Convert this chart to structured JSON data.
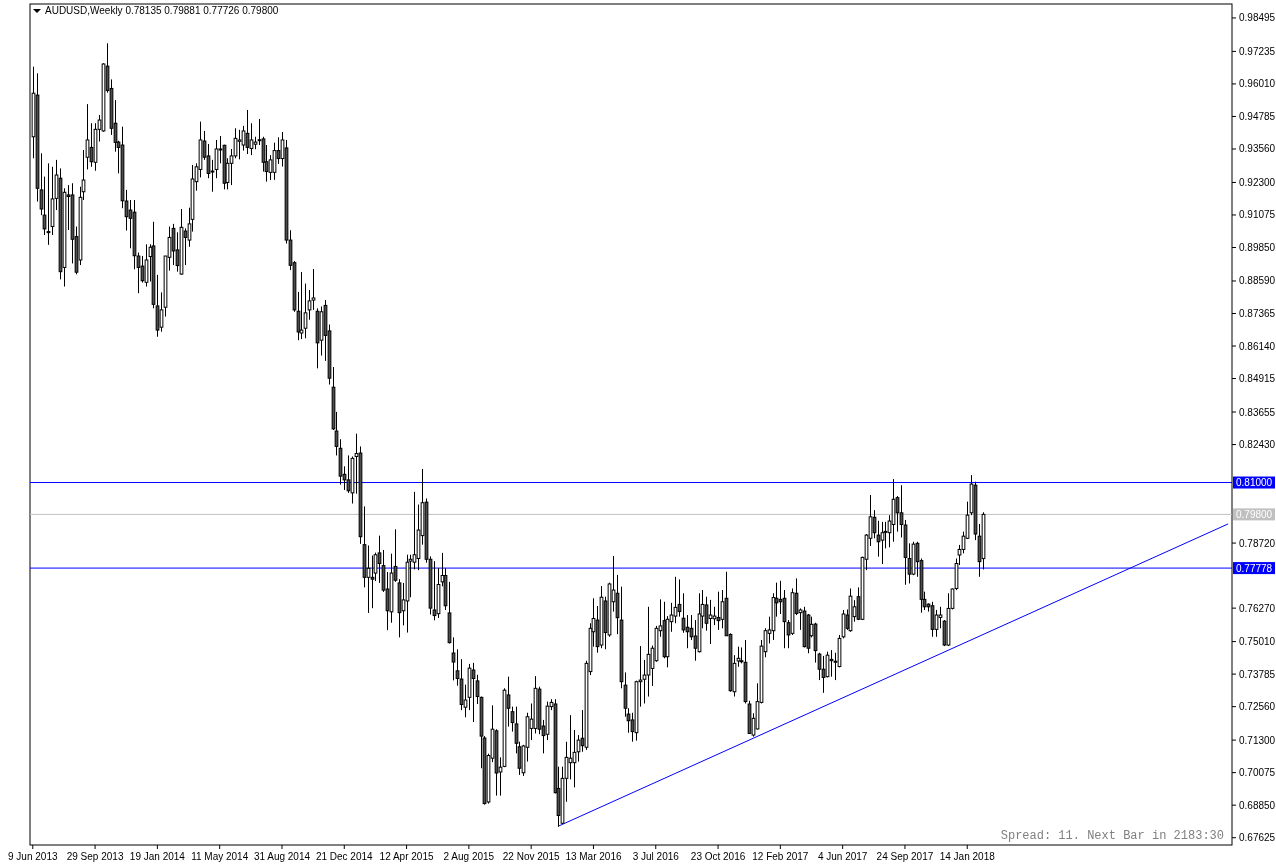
{
  "chart_data": {
    "type": "candlestick",
    "title": "AUDUSD,Weekly 0.78135 0.79881 0.77726 0.79800",
    "annotations": [
      "Spread: 11. Next Bar in 2183:30"
    ],
    "xlim": [
      "2013-06-04",
      "2019-05-05"
    ],
    "ylim": [
      0.6735,
      0.9902
    ],
    "xticks": [
      {
        "value": "2013-06-09",
        "label": "9 Jun 2013"
      },
      {
        "value": "2013-09-29",
        "label": "29 Sep 2013"
      },
      {
        "value": "2014-01-19",
        "label": "19 Jan 2014"
      },
      {
        "value": "2014-05-11",
        "label": "11 May 2014"
      },
      {
        "value": "2014-08-31",
        "label": "31 Aug 2014"
      },
      {
        "value": "2014-12-21",
        "label": "21 Dec 2014"
      },
      {
        "value": "2015-04-12",
        "label": "12 Apr 2015"
      },
      {
        "value": "2015-08-02",
        "label": "2 Aug 2015"
      },
      {
        "value": "2015-11-22",
        "label": "22 Nov 2015"
      },
      {
        "value": "2016-03-13",
        "label": "13 Mar 2016"
      },
      {
        "value": "2016-07-03",
        "label": "3 Jul 2016"
      },
      {
        "value": "2016-10-23",
        "label": "23 Oct 2016"
      },
      {
        "value": "2017-02-12",
        "label": "12 Feb 2017"
      },
      {
        "value": "2017-06-04",
        "label": "4 Jun 2017"
      },
      {
        "value": "2017-09-24",
        "label": "24 Sep 2017"
      },
      {
        "value": "2018-01-14",
        "label": "14 Jan 2018"
      }
    ],
    "yticks": [
      {
        "value": 0.98495,
        "label": "0.98495"
      },
      {
        "value": 0.97235,
        "label": "0.97235"
      },
      {
        "value": 0.9601,
        "label": "0.96010"
      },
      {
        "value": 0.94785,
        "label": "0.94785"
      },
      {
        "value": 0.9356,
        "label": "0.93560"
      },
      {
        "value": 0.923,
        "label": "0.92300"
      },
      {
        "value": 0.91075,
        "label": "0.91075"
      },
      {
        "value": 0.8985,
        "label": "0.89850"
      },
      {
        "value": 0.8859,
        "label": "0.88590"
      },
      {
        "value": 0.87365,
        "label": "0.87365"
      },
      {
        "value": 0.8614,
        "label": "0.86140"
      },
      {
        "value": 0.84915,
        "label": "0.84915"
      },
      {
        "value": 0.83655,
        "label": "0.83655"
      },
      {
        "value": 0.8243,
        "label": "0.82430"
      },
      {
        "value": 0.7872,
        "label": "0.78720"
      },
      {
        "value": 0.7627,
        "label": "0.76270"
      },
      {
        "value": 0.7501,
        "label": "0.75010"
      },
      {
        "value": 0.73785,
        "label": "0.73785"
      },
      {
        "value": 0.7256,
        "label": "0.72560"
      },
      {
        "value": 0.713,
        "label": "0.71300"
      },
      {
        "value": 0.70075,
        "label": "0.70075"
      },
      {
        "value": 0.6885,
        "label": "0.68850"
      },
      {
        "value": 0.67625,
        "label": "0.67625"
      }
    ],
    "ref_lines": [
      {
        "axis": "y",
        "value": 0.81,
        "label": "0.81000",
        "color": "#0000ff"
      },
      {
        "axis": "y",
        "value": 0.798,
        "label": "0.79800",
        "color": "#c0c0c0"
      },
      {
        "axis": "y",
        "value": 0.77778,
        "label": "0.77778",
        "color": "#0000ff"
      }
    ],
    "series": [
      {
        "type": "line",
        "x": [
          "2016-01-10",
          "2019-04-28"
        ],
        "values": [
          0.6806,
          0.7944
        ],
        "color": "#0000ff"
      }
    ],
    "x": [
      "2013-06-09",
      "2013-06-16",
      "2013-06-23",
      "2013-06-30",
      "2013-07-07",
      "2013-07-14",
      "2013-07-21",
      "2013-07-28",
      "2013-08-04",
      "2013-08-11",
      "2013-08-18",
      "2013-08-25",
      "2013-09-01",
      "2013-09-08",
      "2013-09-15",
      "2013-09-22",
      "2013-09-29",
      "2013-10-06",
      "2013-10-13",
      "2013-10-20",
      "2013-10-27",
      "2013-11-03",
      "2013-11-10",
      "2013-11-17",
      "2013-11-24",
      "2013-12-01",
      "2013-12-08",
      "2013-12-15",
      "2013-12-22",
      "2013-12-29",
      "2014-01-05",
      "2014-01-12",
      "2014-01-19",
      "2014-01-26",
      "2014-02-02",
      "2014-02-09",
      "2014-02-16",
      "2014-02-23",
      "2014-03-02",
      "2014-03-09",
      "2014-03-16",
      "2014-03-23",
      "2014-03-30",
      "2014-04-06",
      "2014-04-13",
      "2014-04-20",
      "2014-04-27",
      "2014-05-04",
      "2014-05-11",
      "2014-05-18",
      "2014-05-25",
      "2014-06-01",
      "2014-06-08",
      "2014-06-15",
      "2014-06-22",
      "2014-06-29",
      "2014-07-06",
      "2014-07-13",
      "2014-07-20",
      "2014-07-27",
      "2014-08-03",
      "2014-08-10",
      "2014-08-17",
      "2014-08-24",
      "2014-08-31",
      "2014-09-07",
      "2014-09-14",
      "2014-09-21",
      "2014-09-28",
      "2014-10-05",
      "2014-10-12",
      "2014-10-19",
      "2014-10-26",
      "2014-11-02",
      "2014-11-09",
      "2014-11-16",
      "2014-11-23",
      "2014-11-30",
      "2014-12-07",
      "2014-12-14",
      "2014-12-21",
      "2014-12-28",
      "2015-01-04",
      "2015-01-11",
      "2015-01-18",
      "2015-01-25",
      "2015-02-01",
      "2015-02-08",
      "2015-02-15",
      "2015-02-22",
      "2015-03-01",
      "2015-03-08",
      "2015-03-15",
      "2015-03-22",
      "2015-03-29",
      "2015-04-05",
      "2015-04-12",
      "2015-04-19",
      "2015-04-26",
      "2015-05-03",
      "2015-05-10",
      "2015-05-17",
      "2015-05-24",
      "2015-05-31",
      "2015-06-07",
      "2015-06-14",
      "2015-06-21",
      "2015-06-28",
      "2015-07-05",
      "2015-07-12",
      "2015-07-19",
      "2015-07-26",
      "2015-08-02",
      "2015-08-09",
      "2015-08-16",
      "2015-08-23",
      "2015-08-30",
      "2015-09-06",
      "2015-09-13",
      "2015-09-20",
      "2015-09-27",
      "2015-10-04",
      "2015-10-11",
      "2015-10-18",
      "2015-10-25",
      "2015-11-01",
      "2015-11-08",
      "2015-11-15",
      "2015-11-22",
      "2015-11-29",
      "2015-12-06",
      "2015-12-13",
      "2015-12-20",
      "2015-12-27",
      "2016-01-03",
      "2016-01-10",
      "2016-01-17",
      "2016-01-24",
      "2016-01-31",
      "2016-02-07",
      "2016-02-14",
      "2016-02-21",
      "2016-02-28",
      "2016-03-06",
      "2016-03-13",
      "2016-03-20",
      "2016-03-27",
      "2016-04-03",
      "2016-04-10",
      "2016-04-17",
      "2016-04-24",
      "2016-05-01",
      "2016-05-08",
      "2016-05-15",
      "2016-05-22",
      "2016-05-29",
      "2016-06-05",
      "2016-06-12",
      "2016-06-19",
      "2016-06-26",
      "2016-07-03",
      "2016-07-10",
      "2016-07-17",
      "2016-07-24",
      "2016-07-31",
      "2016-08-07",
      "2016-08-14",
      "2016-08-21",
      "2016-08-28",
      "2016-09-04",
      "2016-09-11",
      "2016-09-18",
      "2016-09-25",
      "2016-10-02",
      "2016-10-09",
      "2016-10-16",
      "2016-10-23",
      "2016-10-30",
      "2016-11-06",
      "2016-11-13",
      "2016-11-20",
      "2016-11-27",
      "2016-12-04",
      "2016-12-11",
      "2016-12-18",
      "2016-12-25",
      "2017-01-01",
      "2017-01-08",
      "2017-01-15",
      "2017-01-22",
      "2017-01-29",
      "2017-02-05",
      "2017-02-12",
      "2017-02-19",
      "2017-02-26",
      "2017-03-05",
      "2017-03-12",
      "2017-03-19",
      "2017-03-26",
      "2017-04-02",
      "2017-04-09",
      "2017-04-16",
      "2017-04-23",
      "2017-04-30",
      "2017-05-07",
      "2017-05-14",
      "2017-05-21",
      "2017-05-28",
      "2017-06-04",
      "2017-06-11",
      "2017-06-18",
      "2017-06-25",
      "2017-07-02",
      "2017-07-09",
      "2017-07-16",
      "2017-07-23",
      "2017-07-30",
      "2017-08-06",
      "2017-08-13",
      "2017-08-20",
      "2017-08-27",
      "2017-09-03",
      "2017-09-10",
      "2017-09-17",
      "2017-09-24",
      "2017-10-01",
      "2017-10-08",
      "2017-10-15",
      "2017-10-22",
      "2017-10-29",
      "2017-11-05",
      "2017-11-12",
      "2017-11-19",
      "2017-11-26",
      "2017-12-03",
      "2017-12-10",
      "2017-12-17",
      "2017-12-24",
      "2017-12-31",
      "2018-01-07",
      "2018-01-14",
      "2018-01-21",
      "2018-01-28",
      "2018-02-04",
      "2018-02-11"
    ],
    "ohlc": [
      [
        0.9402,
        0.9666,
        0.9321,
        0.9566
      ],
      [
        0.9559,
        0.9641,
        0.9158,
        0.9208
      ],
      [
        0.9202,
        0.934,
        0.9107,
        0.913
      ],
      [
        0.9107,
        0.9252,
        0.9032,
        0.9055
      ],
      [
        0.9041,
        0.9302,
        0.8995,
        0.9045
      ],
      [
        0.9064,
        0.9289,
        0.9032,
        0.9168
      ],
      [
        0.917,
        0.9315,
        0.9126,
        0.9258
      ],
      [
        0.9246,
        0.9283,
        0.8865,
        0.8894
      ],
      [
        0.891,
        0.9208,
        0.8838,
        0.9193
      ],
      [
        0.9183,
        0.922,
        0.9051,
        0.9177
      ],
      [
        0.9183,
        0.9227,
        0.8925,
        0.9016
      ],
      [
        0.9026,
        0.9064,
        0.8884,
        0.8892
      ],
      [
        0.8938,
        0.9214,
        0.8919,
        0.9174
      ],
      [
        0.9195,
        0.9352,
        0.9164,
        0.9239
      ],
      [
        0.9325,
        0.9525,
        0.9279,
        0.939
      ],
      [
        0.9362,
        0.9453,
        0.9289,
        0.9308
      ],
      [
        0.9306,
        0.9453,
        0.9274,
        0.943
      ],
      [
        0.943,
        0.9484,
        0.9384,
        0.9465
      ],
      [
        0.9424,
        0.9679,
        0.9421,
        0.9676
      ],
      [
        0.9668,
        0.9754,
        0.9568,
        0.9576
      ],
      [
        0.9584,
        0.9618,
        0.9409,
        0.9434
      ],
      [
        0.9453,
        0.954,
        0.9346,
        0.9381
      ],
      [
        0.9382,
        0.9387,
        0.9264,
        0.9362
      ],
      [
        0.9371,
        0.944,
        0.9133,
        0.9161
      ],
      [
        0.916,
        0.9202,
        0.9049,
        0.9101
      ],
      [
        0.9126,
        0.9164,
        0.8982,
        0.9095
      ],
      [
        0.9118,
        0.9164,
        0.8903,
        0.8954
      ],
      [
        0.8953,
        0.8966,
        0.8813,
        0.891
      ],
      [
        0.8915,
        0.8953,
        0.8853,
        0.886
      ],
      [
        0.8854,
        0.8997,
        0.8838,
        0.8938
      ],
      [
        0.8951,
        0.8997,
        0.8857,
        0.8986
      ],
      [
        0.8991,
        0.9082,
        0.8756,
        0.8771
      ],
      [
        0.8765,
        0.8882,
        0.8649,
        0.8674
      ],
      [
        0.8685,
        0.8816,
        0.8668,
        0.875
      ],
      [
        0.876,
        0.8953,
        0.8725,
        0.8953
      ],
      [
        0.8948,
        0.9064,
        0.8898,
        0.9023
      ],
      [
        0.9057,
        0.9074,
        0.8919,
        0.8972
      ],
      [
        0.8976,
        0.9042,
        0.8894,
        0.8917
      ],
      [
        0.8885,
        0.913,
        0.8882,
        0.9061
      ],
      [
        0.9047,
        0.9057,
        0.8919,
        0.9023
      ],
      [
        0.9013,
        0.9135,
        0.8988,
        0.9074
      ],
      [
        0.9091,
        0.9296,
        0.9045,
        0.9243
      ],
      [
        0.9233,
        0.9302,
        0.9199,
        0.9289
      ],
      [
        0.9279,
        0.9459,
        0.9249,
        0.939
      ],
      [
        0.9386,
        0.9424,
        0.9315,
        0.9325
      ],
      [
        0.933,
        0.9375,
        0.9246,
        0.9264
      ],
      [
        0.9271,
        0.9315,
        0.9195,
        0.9273
      ],
      [
        0.9279,
        0.939,
        0.9246,
        0.9356
      ],
      [
        0.9355,
        0.9405,
        0.9302,
        0.9356
      ],
      [
        0.937,
        0.9372,
        0.9204,
        0.9227
      ],
      [
        0.923,
        0.9321,
        0.9204,
        0.9302
      ],
      [
        0.9302,
        0.9356,
        0.922,
        0.933
      ],
      [
        0.933,
        0.9434,
        0.9321,
        0.9396
      ],
      [
        0.9385,
        0.9428,
        0.9317,
        0.939
      ],
      [
        0.9371,
        0.9443,
        0.935,
        0.9424
      ],
      [
        0.9415,
        0.9503,
        0.9337,
        0.9362
      ],
      [
        0.9358,
        0.9453,
        0.9333,
        0.939
      ],
      [
        0.9374,
        0.9402,
        0.9355,
        0.9382
      ],
      [
        0.939,
        0.9469,
        0.9371,
        0.9391
      ],
      [
        0.9394,
        0.9402,
        0.9271,
        0.9306
      ],
      [
        0.9308,
        0.9371,
        0.9233,
        0.9271
      ],
      [
        0.9268,
        0.9333,
        0.9239,
        0.9315
      ],
      [
        0.9268,
        0.938,
        0.924,
        0.935
      ],
      [
        0.935,
        0.94,
        0.93,
        0.932
      ],
      [
        0.932,
        0.942,
        0.929,
        0.939
      ],
      [
        0.936,
        0.939,
        0.9,
        0.9013
      ],
      [
        0.9013,
        0.905,
        0.89,
        0.8918
      ],
      [
        0.8928,
        0.8934,
        0.8743,
        0.875
      ],
      [
        0.8745,
        0.8818,
        0.8636,
        0.8667
      ],
      [
        0.8663,
        0.8893,
        0.864,
        0.8674
      ],
      [
        0.8681,
        0.8849,
        0.8643,
        0.8739
      ],
      [
        0.875,
        0.8825,
        0.8713,
        0.8784
      ],
      [
        0.8787,
        0.8904,
        0.875,
        0.8795
      ],
      [
        0.8745,
        0.8756,
        0.853,
        0.8626
      ],
      [
        0.8636,
        0.8763,
        0.8578,
        0.8743
      ],
      [
        0.8767,
        0.8787,
        0.8558,
        0.8654
      ],
      [
        0.8671,
        0.8695,
        0.8469,
        0.8493
      ],
      [
        0.8459,
        0.8535,
        0.8298,
        0.8302
      ],
      [
        0.8294,
        0.8366,
        0.8202,
        0.8236
      ],
      [
        0.8229,
        0.8263,
        0.8092,
        0.8124
      ],
      [
        0.8131,
        0.8161,
        0.8072,
        0.811
      ],
      [
        0.811,
        0.8202,
        0.8061,
        0.8069
      ],
      [
        0.8061,
        0.8198,
        0.8021,
        0.8191
      ],
      [
        0.8198,
        0.8284,
        0.8058,
        0.8209
      ],
      [
        0.8211,
        0.8236,
        0.7869,
        0.7896
      ],
      [
        0.7866,
        0.801,
        0.7705,
        0.7743
      ],
      [
        0.7743,
        0.7863,
        0.7609,
        0.7777
      ],
      [
        0.7743,
        0.7825,
        0.7627,
        0.7736
      ],
      [
        0.7759,
        0.7836,
        0.7729,
        0.7828
      ],
      [
        0.7835,
        0.79,
        0.7722,
        0.7795
      ],
      [
        0.7787,
        0.7846,
        0.7688,
        0.7695
      ],
      [
        0.7699,
        0.7763,
        0.7544,
        0.7617
      ],
      [
        0.7613,
        0.7832,
        0.7572,
        0.7759
      ],
      [
        0.7784,
        0.7924,
        0.7726,
        0.7732
      ],
      [
        0.7722,
        0.7736,
        0.7517,
        0.761
      ],
      [
        0.7617,
        0.7722,
        0.7562,
        0.7658
      ],
      [
        0.7654,
        0.7828,
        0.7535,
        0.78
      ],
      [
        0.7804,
        0.7828,
        0.7668,
        0.7811
      ],
      [
        0.78,
        0.8065,
        0.7773,
        0.7828
      ],
      [
        0.7814,
        0.8017,
        0.777,
        0.7921
      ],
      [
        0.79,
        0.8151,
        0.7866,
        0.8024
      ],
      [
        0.8026,
        0.804,
        0.7798,
        0.7811
      ],
      [
        0.7811,
        0.7822,
        0.7603,
        0.7627
      ],
      [
        0.762,
        0.7804,
        0.7581,
        0.7599
      ],
      [
        0.7606,
        0.7777,
        0.759,
        0.7716
      ],
      [
        0.7726,
        0.7835,
        0.7709,
        0.775
      ],
      [
        0.775,
        0.7777,
        0.762,
        0.7636
      ],
      [
        0.7609,
        0.7726,
        0.7494,
        0.7497
      ],
      [
        0.7458,
        0.7517,
        0.7355,
        0.7424
      ],
      [
        0.7391,
        0.7472,
        0.7335,
        0.7362
      ],
      [
        0.736,
        0.7435,
        0.7243,
        0.7264
      ],
      [
        0.7254,
        0.7339,
        0.7216,
        0.7281
      ],
      [
        0.7291,
        0.7417,
        0.7243,
        0.7401
      ],
      [
        0.7394,
        0.7421,
        0.7198,
        0.7362
      ],
      [
        0.7353,
        0.7376,
        0.7266,
        0.7294
      ],
      [
        0.7291,
        0.7294,
        0.7024,
        0.7145
      ],
      [
        0.7138,
        0.7145,
        0.6887,
        0.6891
      ],
      [
        0.6897,
        0.7079,
        0.6891,
        0.7072
      ],
      [
        0.7062,
        0.7261,
        0.7047,
        0.7171
      ],
      [
        0.7165,
        0.7171,
        0.6921,
        0.7006
      ],
      [
        0.701,
        0.7065,
        0.6921,
        0.7028
      ],
      [
        0.7031,
        0.7325,
        0.7028,
        0.7318
      ],
      [
        0.73,
        0.7369,
        0.7181,
        0.725
      ],
      [
        0.7237,
        0.7256,
        0.7162,
        0.7196
      ],
      [
        0.7191,
        0.7256,
        0.708,
        0.7118
      ],
      [
        0.7105,
        0.7124,
        0.6999,
        0.7024
      ],
      [
        0.7007,
        0.7112,
        0.6995,
        0.7108
      ],
      [
        0.7103,
        0.7233,
        0.7049,
        0.7218
      ],
      [
        0.7174,
        0.7268,
        0.713,
        0.7209
      ],
      [
        0.7174,
        0.7371,
        0.7155,
        0.7325
      ],
      [
        0.7322,
        0.7331,
        0.7152,
        0.7171
      ],
      [
        0.7183,
        0.7206,
        0.708,
        0.7147
      ],
      [
        0.7152,
        0.7275,
        0.713,
        0.7258
      ],
      [
        0.7256,
        0.7284,
        0.7243,
        0.7272
      ],
      [
        0.7266,
        0.7284,
        0.6929,
        0.6932
      ],
      [
        0.6948,
        0.703,
        0.6804,
        0.6846
      ],
      [
        0.6817,
        0.703,
        0.6814,
        0.6986
      ],
      [
        0.6986,
        0.7124,
        0.6898,
        0.7065
      ],
      [
        0.7045,
        0.7224,
        0.6982,
        0.7062
      ],
      [
        0.7045,
        0.7168,
        0.6952,
        0.7084
      ],
      [
        0.7086,
        0.7149,
        0.7049,
        0.713
      ],
      [
        0.7137,
        0.7243,
        0.7086,
        0.7109
      ],
      [
        0.7103,
        0.7429,
        0.7093,
        0.7419
      ],
      [
        0.7388,
        0.757,
        0.7375,
        0.7551
      ],
      [
        0.7538,
        0.7664,
        0.7482,
        0.7588
      ],
      [
        0.7582,
        0.7635,
        0.7459,
        0.7482
      ],
      [
        0.7488,
        0.771,
        0.7476,
        0.7668
      ],
      [
        0.7654,
        0.767,
        0.7472,
        0.7535
      ],
      [
        0.7526,
        0.7723,
        0.7519,
        0.7718
      ],
      [
        0.7651,
        0.7823,
        0.7614,
        0.7695
      ],
      [
        0.7683,
        0.7752,
        0.7529,
        0.7591
      ],
      [
        0.7582,
        0.7708,
        0.7325,
        0.735
      ],
      [
        0.7337,
        0.7385,
        0.7218,
        0.725
      ],
      [
        0.7228,
        0.725,
        0.7158,
        0.7203
      ],
      [
        0.7206,
        0.7233,
        0.7124,
        0.7162
      ],
      [
        0.7158,
        0.7354,
        0.7128,
        0.735
      ],
      [
        0.735,
        0.7484,
        0.7256,
        0.7356
      ],
      [
        0.7359,
        0.7432,
        0.7268,
        0.7375
      ],
      [
        0.7375,
        0.7632,
        0.7294,
        0.7453
      ],
      [
        0.74,
        0.7486,
        0.7334,
        0.7476
      ],
      [
        0.7429,
        0.756,
        0.7425,
        0.7551
      ],
      [
        0.7542,
        0.766,
        0.7519,
        0.756
      ],
      [
        0.758,
        0.7651,
        0.7438,
        0.7444
      ],
      [
        0.7444,
        0.7597,
        0.7404,
        0.7585
      ],
      [
        0.7576,
        0.7647,
        0.7538,
        0.7601
      ],
      [
        0.7597,
        0.7745,
        0.757,
        0.763
      ],
      [
        0.7641,
        0.7735,
        0.7595,
        0.7614
      ],
      [
        0.7589,
        0.7683,
        0.7534,
        0.7545
      ],
      [
        0.7555,
        0.7601,
        0.7476,
        0.7538
      ],
      [
        0.7551,
        0.7601,
        0.7507,
        0.7519
      ],
      [
        0.7522,
        0.7582,
        0.7429,
        0.7476
      ],
      [
        0.7463,
        0.7683,
        0.746,
        0.7605
      ],
      [
        0.7597,
        0.7695,
        0.7551,
        0.7641
      ],
      [
        0.7639,
        0.767,
        0.7542,
        0.757
      ],
      [
        0.7588,
        0.7658,
        0.7492,
        0.7601
      ],
      [
        0.7587,
        0.7632,
        0.7563,
        0.7597
      ],
      [
        0.7592,
        0.7689,
        0.7545,
        0.758
      ],
      [
        0.7585,
        0.7695,
        0.7551,
        0.7651
      ],
      [
        0.7664,
        0.7764,
        0.7522,
        0.7523
      ],
      [
        0.7528,
        0.7532,
        0.7312,
        0.7316
      ],
      [
        0.7312,
        0.745,
        0.7294,
        0.7419
      ],
      [
        0.7428,
        0.7482,
        0.7406,
        0.7438
      ],
      [
        0.7429,
        0.7479,
        0.7419,
        0.7425
      ],
      [
        0.7423,
        0.7507,
        0.7268,
        0.7275
      ],
      [
        0.7266,
        0.7278,
        0.7153,
        0.7155
      ],
      [
        0.7149,
        0.7231,
        0.7143,
        0.7212
      ],
      [
        0.7172,
        0.7344,
        0.717,
        0.7275
      ],
      [
        0.7272,
        0.7507,
        0.7268,
        0.7484
      ],
      [
        0.7463,
        0.7551,
        0.7442,
        0.7542
      ],
      [
        0.7532,
        0.7595,
        0.7494,
        0.7545
      ],
      [
        0.7542,
        0.7683,
        0.7507,
        0.7667
      ],
      [
        0.7664,
        0.7723,
        0.7595,
        0.7647
      ],
      [
        0.766,
        0.773,
        0.7605,
        0.7651
      ],
      [
        0.7664,
        0.7695,
        0.7476,
        0.7576
      ],
      [
        0.7572,
        0.7582,
        0.7476,
        0.7526
      ],
      [
        0.7532,
        0.7701,
        0.7526,
        0.7685
      ],
      [
        0.7683,
        0.7739,
        0.7601,
        0.7607
      ],
      [
        0.761,
        0.7626,
        0.7545,
        0.762
      ],
      [
        0.7616,
        0.7632,
        0.7479,
        0.7482
      ],
      [
        0.7601,
        0.7605,
        0.7457,
        0.7476
      ],
      [
        0.7523,
        0.7595,
        0.7517,
        0.7566
      ],
      [
        0.7567,
        0.7572,
        0.7422,
        0.7467
      ],
      [
        0.7454,
        0.7459,
        0.7356,
        0.7397
      ],
      [
        0.7397,
        0.7447,
        0.7308,
        0.7366
      ],
      [
        0.7369,
        0.7463,
        0.7366,
        0.745
      ],
      [
        0.7434,
        0.7469,
        0.7369,
        0.7429
      ],
      [
        0.7427,
        0.7459,
        0.7356,
        0.7424
      ],
      [
        0.7407,
        0.7526,
        0.7404,
        0.7513
      ],
      [
        0.7519,
        0.762,
        0.7513,
        0.7605
      ],
      [
        0.7601,
        0.7622,
        0.7545,
        0.7551
      ],
      [
        0.7542,
        0.7701,
        0.7538,
        0.7672
      ],
      [
        0.7595,
        0.7657,
        0.7576,
        0.7632
      ],
      [
        0.767,
        0.7705,
        0.7582,
        0.7585
      ],
      [
        0.7585,
        0.7821,
        0.7582,
        0.7818
      ],
      [
        0.7811,
        0.7906,
        0.777,
        0.7902
      ],
      [
        0.789,
        0.8053,
        0.7861,
        0.7971
      ],
      [
        0.7969,
        0.7996,
        0.789,
        0.7911
      ],
      [
        0.7902,
        0.7956,
        0.7821,
        0.7877
      ],
      [
        0.7883,
        0.7952,
        0.7793,
        0.7911
      ],
      [
        0.7915,
        0.7952,
        0.7852,
        0.7916
      ],
      [
        0.7911,
        0.7977,
        0.7856,
        0.7955
      ],
      [
        0.7942,
        0.8113,
        0.7877,
        0.8037
      ],
      [
        0.8043,
        0.8049,
        0.7915,
        0.7986
      ],
      [
        0.7986,
        0.809,
        0.7893,
        0.7942
      ],
      [
        0.794,
        0.7959,
        0.7715,
        0.7818
      ],
      [
        0.7814,
        0.7871,
        0.772,
        0.7755
      ],
      [
        0.7755,
        0.7877,
        0.7751,
        0.7868
      ],
      [
        0.7871,
        0.7877,
        0.7745,
        0.7802
      ],
      [
        0.7806,
        0.7814,
        0.761,
        0.766
      ],
      [
        0.766,
        0.7689,
        0.762,
        0.7632
      ],
      [
        0.7642,
        0.7645,
        0.7614,
        0.7632
      ],
      [
        0.7636,
        0.7651,
        0.7519,
        0.7547
      ],
      [
        0.7547,
        0.762,
        0.7519,
        0.7601
      ],
      [
        0.7592,
        0.7632,
        0.7551,
        0.7601
      ],
      [
        0.7578,
        0.7582,
        0.7484,
        0.7488
      ],
      [
        0.7488,
        0.7683,
        0.7484,
        0.7626
      ],
      [
        0.7626,
        0.7701,
        0.7622,
        0.7699
      ],
      [
        0.7701,
        0.7814,
        0.7695,
        0.7795
      ],
      [
        0.7827,
        0.7865,
        0.7789,
        0.7848
      ],
      [
        0.7848,
        0.7915,
        0.7833,
        0.7898
      ],
      [
        0.789,
        0.8028,
        0.7887,
        0.7977
      ],
      [
        0.7986,
        0.8128,
        0.7977,
        0.8094
      ],
      [
        0.809,
        0.8103,
        0.7883,
        0.7906
      ],
      [
        0.7898,
        0.7944,
        0.7745,
        0.7802
      ],
      [
        0.78135,
        0.79881,
        0.77726,
        0.798
      ]
    ]
  }
}
